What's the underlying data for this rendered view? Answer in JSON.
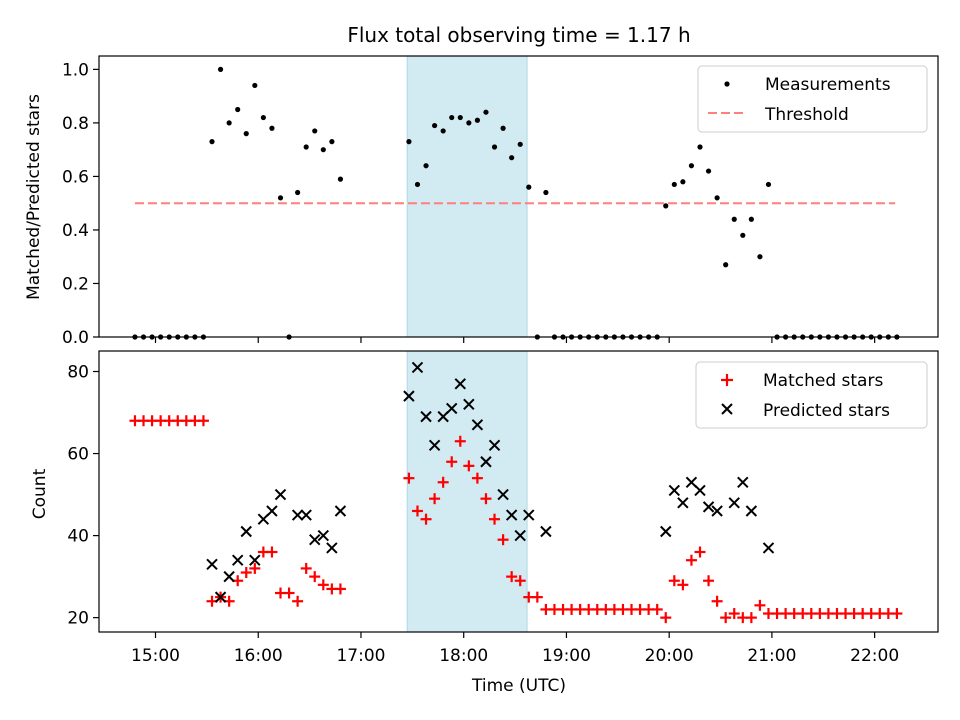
{
  "figure": {
    "title": "Flux total observing time = 1.17 h",
    "xlabel": "Time (UTC)",
    "x_ticks": [
      "15:00",
      "16:00",
      "17:00",
      "18:00",
      "19:00",
      "20:00",
      "21:00",
      "22:00"
    ]
  },
  "colors": {
    "measurement": "#000000",
    "threshold": "#ff7f7f",
    "matched": "#ff0000",
    "predicted": "#000000",
    "highlight": "#add8e6"
  },
  "chart_data": [
    {
      "type": "scatter",
      "ylabel": "Matched/Predicted stars",
      "xlim": [
        "14:27",
        "22:37"
      ],
      "ylim": [
        0.0,
        1.05
      ],
      "y_ticks": [
        "0.0",
        "0.2",
        "0.4",
        "0.6",
        "0.8",
        "1.0"
      ],
      "x_tick_labels_shown": false,
      "legend_position": "upper right",
      "highlight_span": [
        "17:27",
        "18:37"
      ],
      "threshold": {
        "name": "Threshold",
        "value": 0.5,
        "x": [
          "14:48",
          "22:12"
        ]
      },
      "series": [
        {
          "name": "Measurements",
          "points": [
            [
              "14:48",
              0.0
            ],
            [
              "14:53",
              0.0
            ],
            [
              "14:58",
              0.0
            ],
            [
              "15:03",
              0.0
            ],
            [
              "15:08",
              0.0
            ],
            [
              "15:13",
              0.0
            ],
            [
              "15:18",
              0.0
            ],
            [
              "15:23",
              0.0
            ],
            [
              "15:28",
              0.0
            ],
            [
              "15:33",
              0.73
            ],
            [
              "15:38",
              1.0
            ],
            [
              "15:43",
              0.8
            ],
            [
              "15:48",
              0.85
            ],
            [
              "15:53",
              0.76
            ],
            [
              "15:58",
              0.94
            ],
            [
              "16:03",
              0.82
            ],
            [
              "16:08",
              0.78
            ],
            [
              "16:13",
              0.52
            ],
            [
              "16:18",
              0.0
            ],
            [
              "16:23",
              0.54
            ],
            [
              "16:28",
              0.71
            ],
            [
              "16:33",
              0.77
            ],
            [
              "16:38",
              0.7
            ],
            [
              "16:43",
              0.73
            ],
            [
              "16:48",
              0.59
            ],
            [
              "17:28",
              0.73
            ],
            [
              "17:33",
              0.57
            ],
            [
              "17:38",
              0.64
            ],
            [
              "17:43",
              0.79
            ],
            [
              "17:48",
              0.77
            ],
            [
              "17:53",
              0.82
            ],
            [
              "17:58",
              0.82
            ],
            [
              "18:03",
              0.8
            ],
            [
              "18:08",
              0.81
            ],
            [
              "18:13",
              0.84
            ],
            [
              "18:18",
              0.71
            ],
            [
              "18:23",
              0.78
            ],
            [
              "18:28",
              0.67
            ],
            [
              "18:33",
              0.72
            ],
            [
              "18:38",
              0.56
            ],
            [
              "18:43",
              0.0
            ],
            [
              "18:48",
              0.54
            ],
            [
              "18:53",
              0.0
            ],
            [
              "18:58",
              0.0
            ],
            [
              "19:03",
              0.0
            ],
            [
              "19:08",
              0.0
            ],
            [
              "19:13",
              0.0
            ],
            [
              "19:18",
              0.0
            ],
            [
              "19:23",
              0.0
            ],
            [
              "19:28",
              0.0
            ],
            [
              "19:33",
              0.0
            ],
            [
              "19:38",
              0.0
            ],
            [
              "19:43",
              0.0
            ],
            [
              "19:48",
              0.0
            ],
            [
              "19:53",
              0.0
            ],
            [
              "19:58",
              0.49
            ],
            [
              "20:03",
              0.57
            ],
            [
              "20:08",
              0.58
            ],
            [
              "20:13",
              0.64
            ],
            [
              "20:18",
              0.71
            ],
            [
              "20:23",
              0.62
            ],
            [
              "20:28",
              0.52
            ],
            [
              "20:33",
              0.27
            ],
            [
              "20:38",
              0.44
            ],
            [
              "20:43",
              0.38
            ],
            [
              "20:48",
              0.44
            ],
            [
              "20:53",
              0.3
            ],
            [
              "20:58",
              0.57
            ],
            [
              "21:03",
              0.0
            ],
            [
              "21:08",
              0.0
            ],
            [
              "21:13",
              0.0
            ],
            [
              "21:18",
              0.0
            ],
            [
              "21:23",
              0.0
            ],
            [
              "21:28",
              0.0
            ],
            [
              "21:33",
              0.0
            ],
            [
              "21:38",
              0.0
            ],
            [
              "21:43",
              0.0
            ],
            [
              "21:48",
              0.0
            ],
            [
              "21:53",
              0.0
            ],
            [
              "21:58",
              0.0
            ],
            [
              "22:03",
              0.0
            ],
            [
              "22:08",
              0.0
            ],
            [
              "22:13",
              0.0
            ]
          ]
        }
      ]
    },
    {
      "type": "scatter",
      "ylabel": "Count",
      "xlim": [
        "14:27",
        "22:37"
      ],
      "ylim": [
        16.5,
        85
      ],
      "y_ticks": [
        "20",
        "40",
        "60",
        "80"
      ],
      "legend_position": "upper right",
      "highlight_span": [
        "17:27",
        "18:37"
      ],
      "series": [
        {
          "name": "Matched stars",
          "marker": "+",
          "points": [
            [
              "14:48",
              68
            ],
            [
              "14:53",
              68
            ],
            [
              "14:58",
              68
            ],
            [
              "15:03",
              68
            ],
            [
              "15:08",
              68
            ],
            [
              "15:13",
              68
            ],
            [
              "15:18",
              68
            ],
            [
              "15:23",
              68
            ],
            [
              "15:28",
              68
            ],
            [
              "15:33",
              24
            ],
            [
              "15:38",
              25
            ],
            [
              "15:43",
              24
            ],
            [
              "15:48",
              29
            ],
            [
              "15:53",
              31
            ],
            [
              "15:58",
              32
            ],
            [
              "16:03",
              36
            ],
            [
              "16:08",
              36
            ],
            [
              "16:13",
              26
            ],
            [
              "16:18",
              26
            ],
            [
              "16:23",
              24
            ],
            [
              "16:28",
              32
            ],
            [
              "16:33",
              30
            ],
            [
              "16:38",
              28
            ],
            [
              "16:43",
              27
            ],
            [
              "16:48",
              27
            ],
            [
              "17:28",
              54
            ],
            [
              "17:33",
              46
            ],
            [
              "17:38",
              44
            ],
            [
              "17:43",
              49
            ],
            [
              "17:48",
              53
            ],
            [
              "17:53",
              58
            ],
            [
              "17:58",
              63
            ],
            [
              "18:03",
              57
            ],
            [
              "18:08",
              54
            ],
            [
              "18:13",
              49
            ],
            [
              "18:18",
              44
            ],
            [
              "18:23",
              39
            ],
            [
              "18:28",
              30
            ],
            [
              "18:33",
              29
            ],
            [
              "18:38",
              25
            ],
            [
              "18:43",
              25
            ],
            [
              "18:48",
              22
            ],
            [
              "18:53",
              22
            ],
            [
              "18:58",
              22
            ],
            [
              "19:03",
              22
            ],
            [
              "19:08",
              22
            ],
            [
              "19:13",
              22
            ],
            [
              "19:18",
              22
            ],
            [
              "19:23",
              22
            ],
            [
              "19:28",
              22
            ],
            [
              "19:33",
              22
            ],
            [
              "19:38",
              22
            ],
            [
              "19:43",
              22
            ],
            [
              "19:48",
              22
            ],
            [
              "19:53",
              22
            ],
            [
              "19:58",
              20
            ],
            [
              "20:03",
              29
            ],
            [
              "20:08",
              28
            ],
            [
              "20:13",
              34
            ],
            [
              "20:18",
              36
            ],
            [
              "20:23",
              29
            ],
            [
              "20:28",
              24
            ],
            [
              "20:33",
              20
            ],
            [
              "20:38",
              21
            ],
            [
              "20:43",
              20
            ],
            [
              "20:48",
              20
            ],
            [
              "20:53",
              23
            ],
            [
              "20:58",
              21
            ],
            [
              "21:03",
              21
            ],
            [
              "21:08",
              21
            ],
            [
              "21:13",
              21
            ],
            [
              "21:18",
              21
            ],
            [
              "21:23",
              21
            ],
            [
              "21:28",
              21
            ],
            [
              "21:33",
              21
            ],
            [
              "21:38",
              21
            ],
            [
              "21:43",
              21
            ],
            [
              "21:48",
              21
            ],
            [
              "21:53",
              21
            ],
            [
              "21:58",
              21
            ],
            [
              "22:03",
              21
            ],
            [
              "22:08",
              21
            ],
            [
              "22:13",
              21
            ]
          ]
        },
        {
          "name": "Predicted stars",
          "marker": "x",
          "points": [
            [
              "15:33",
              33
            ],
            [
              "15:38",
              25
            ],
            [
              "15:43",
              30
            ],
            [
              "15:48",
              34
            ],
            [
              "15:53",
              41
            ],
            [
              "15:58",
              34
            ],
            [
              "16:03",
              44
            ],
            [
              "16:08",
              46
            ],
            [
              "16:13",
              50
            ],
            [
              "16:23",
              45
            ],
            [
              "16:28",
              45
            ],
            [
              "16:33",
              39
            ],
            [
              "16:38",
              40
            ],
            [
              "16:43",
              37
            ],
            [
              "16:48",
              46
            ],
            [
              "17:28",
              74
            ],
            [
              "17:33",
              81
            ],
            [
              "17:38",
              69
            ],
            [
              "17:43",
              62
            ],
            [
              "17:48",
              69
            ],
            [
              "17:53",
              71
            ],
            [
              "17:58",
              77
            ],
            [
              "18:03",
              72
            ],
            [
              "18:08",
              67
            ],
            [
              "18:13",
              58
            ],
            [
              "18:18",
              62
            ],
            [
              "18:23",
              50
            ],
            [
              "18:28",
              45
            ],
            [
              "18:33",
              40
            ],
            [
              "18:38",
              45
            ],
            [
              "18:48",
              41
            ],
            [
              "19:58",
              41
            ],
            [
              "20:03",
              51
            ],
            [
              "20:08",
              48
            ],
            [
              "20:13",
              53
            ],
            [
              "20:18",
              51
            ],
            [
              "20:23",
              47
            ],
            [
              "20:28",
              46
            ],
            [
              "20:38",
              48
            ],
            [
              "20:43",
              53
            ],
            [
              "20:48",
              46
            ],
            [
              "20:58",
              37
            ]
          ]
        }
      ]
    }
  ]
}
